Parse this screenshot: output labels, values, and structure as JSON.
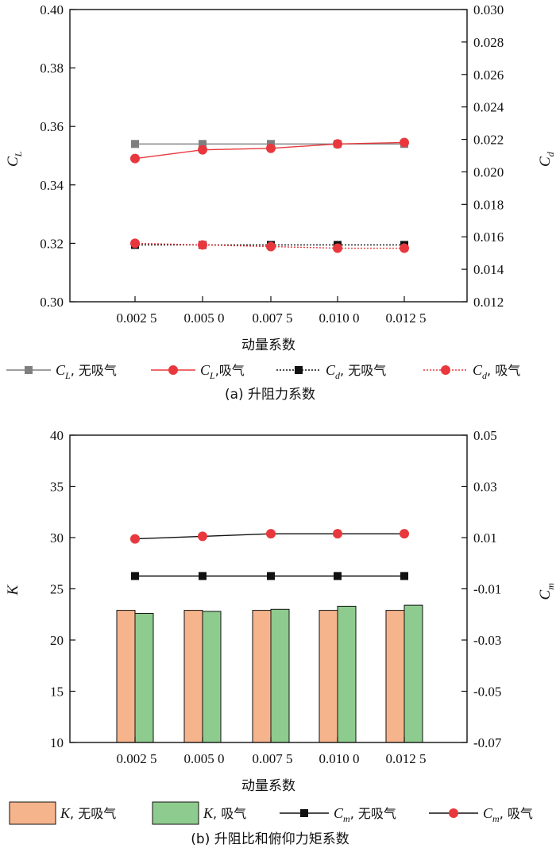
{
  "chart_data": [
    {
      "type": "line",
      "caption": "(a) 升阻力系数",
      "xlabel": "动量系数",
      "categories": [
        "0.002 5",
        "0.005 0",
        "0.007 5",
        "0.010 0",
        "0.012 5"
      ],
      "y_left": {
        "label_main": "C",
        "label_sub": "L",
        "lim": [
          0.3,
          0.4
        ],
        "ticks": [
          "0.30",
          "0.32",
          "0.34",
          "0.36",
          "0.38",
          "0.40"
        ]
      },
      "y_right": {
        "label_main": "C",
        "label_sub": "d",
        "lim": [
          0.012,
          0.03
        ],
        "ticks": [
          "0.012",
          "0.014",
          "0.016",
          "0.018",
          "0.020",
          "0.022",
          "0.024",
          "0.026",
          "0.028",
          "0.030"
        ]
      },
      "series": [
        {
          "name_main": "C",
          "name_sub": "L",
          "name_rest": ", 无吸气",
          "axis": "left",
          "style": "solid",
          "marker": "square",
          "color": "#7f7f7f",
          "values": [
            0.354,
            0.354,
            0.354,
            0.354,
            0.354
          ]
        },
        {
          "name_main": "C",
          "name_sub": "L",
          "name_rest": ",吸气",
          "axis": "left",
          "style": "solid",
          "marker": "circle",
          "color": "#e8383d",
          "values": [
            0.349,
            0.352,
            0.3525,
            0.354,
            0.3545
          ]
        },
        {
          "name_main": "C",
          "name_sub": "d",
          "name_rest": ", 无吸气",
          "axis": "right",
          "style": "dotted",
          "marker": "square",
          "color": "#111111",
          "values": [
            0.0155,
            0.0155,
            0.0155,
            0.0155,
            0.0155
          ]
        },
        {
          "name_main": "C",
          "name_sub": "d",
          "name_rest": ", 吸气",
          "axis": "right",
          "style": "dotted",
          "marker": "circle",
          "color": "#e8383d",
          "values": [
            0.0156,
            0.0155,
            0.0154,
            0.0153,
            0.0153
          ]
        }
      ]
    },
    {
      "type": "bar",
      "caption": "(b) 升阻比和俯仰力矩系数",
      "xlabel": "动量系数",
      "categories": [
        "0.002 5",
        "0.005 0",
        "0.007 5",
        "0.010 0",
        "0.012 5"
      ],
      "y_left": {
        "label_main": "K",
        "label_sub": "",
        "lim": [
          10,
          40
        ],
        "ticks": [
          "10",
          "15",
          "20",
          "25",
          "30",
          "35",
          "40"
        ]
      },
      "y_right": {
        "label_main": "C",
        "label_sub": "m",
        "lim": [
          -0.07,
          0.05
        ],
        "ticks": [
          "-0.07",
          "-0.05",
          "-0.03",
          "-0.01",
          "0.01",
          "0.03",
          "0.05"
        ]
      },
      "series": [
        {
          "name_main": "K",
          "name_sub": "",
          "name_rest": ", 无吸气",
          "axis": "left",
          "kind": "bar",
          "color": "#f6b48c",
          "values": [
            22.9,
            22.9,
            22.9,
            22.9,
            22.9
          ]
        },
        {
          "name_main": "K",
          "name_sub": "",
          "name_rest": ", 吸气",
          "axis": "left",
          "kind": "bar",
          "color": "#8ecb8e",
          "values": [
            22.6,
            22.8,
            23.0,
            23.3,
            23.4
          ]
        },
        {
          "name_main": "C",
          "name_sub": "m",
          "name_rest": ", 无吸气",
          "axis": "right",
          "kind": "line",
          "marker": "square",
          "color": "#111111",
          "values": [
            -0.005,
            -0.005,
            -0.005,
            -0.005,
            -0.005
          ]
        },
        {
          "name_main": "C",
          "name_sub": "m",
          "name_rest": ", 吸气",
          "axis": "right",
          "kind": "line",
          "marker": "circle",
          "color": "#e8383d",
          "values": [
            0.0095,
            0.0105,
            0.0115,
            0.0115,
            0.0115
          ]
        }
      ]
    }
  ]
}
